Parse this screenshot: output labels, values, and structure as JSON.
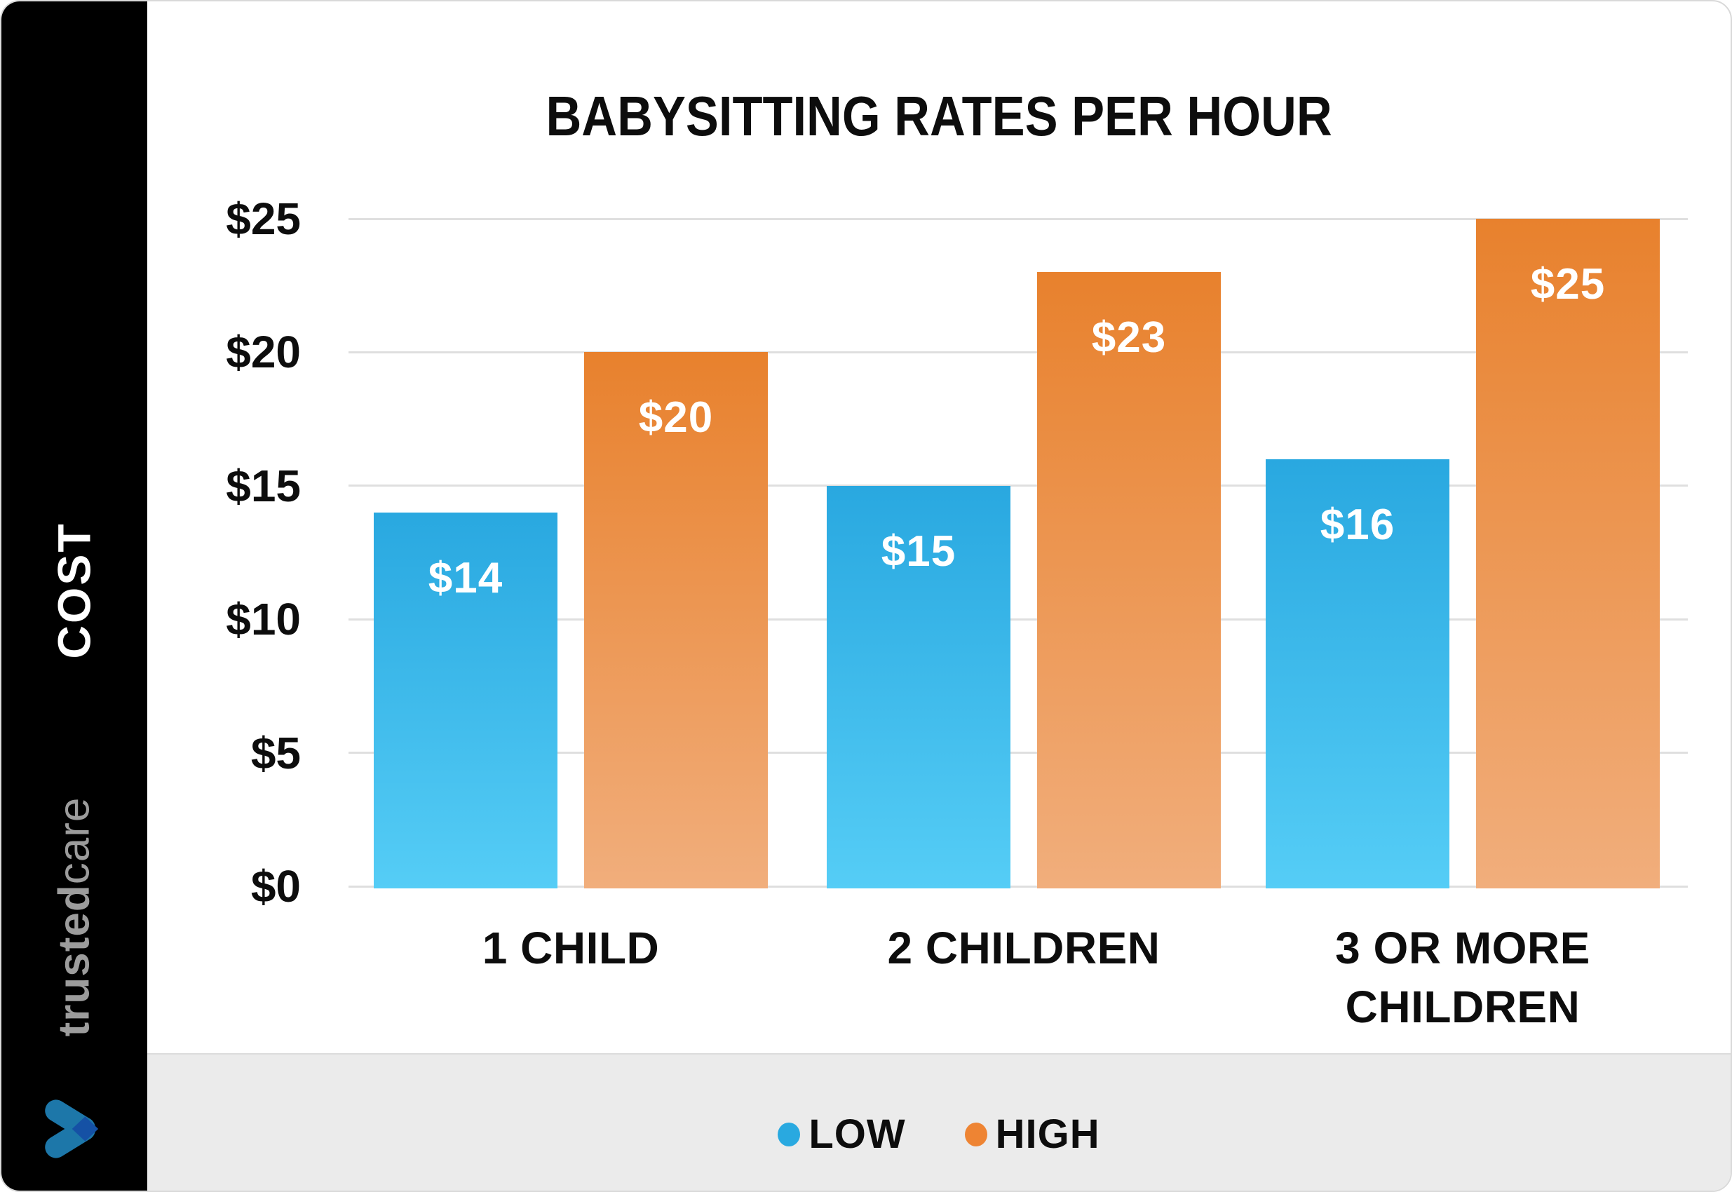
{
  "title": {
    "text": "BABYSITTING RATES PER HOUR"
  },
  "sidebar": {
    "cost_label": "COST",
    "brand_part1": "trusted",
    "brand_part2": "care"
  },
  "chart_data": {
    "type": "bar",
    "title": "BABYSITTING RATES PER HOUR",
    "categories": [
      "1 CHILD",
      "2 CHILDREN",
      "3 OR MORE CHILDREN"
    ],
    "categories_lines": [
      [
        "1 CHILD"
      ],
      [
        "2 CHILDREN"
      ],
      [
        "3 OR MORE",
        "CHILDREN"
      ]
    ],
    "series": [
      {
        "name": "LOW",
        "values": [
          14,
          15,
          16
        ],
        "bar_labels": [
          "$14",
          "$15",
          "$16"
        ]
      },
      {
        "name": "HIGH",
        "values": [
          20,
          23,
          25
        ],
        "bar_labels": [
          "$20",
          "$23",
          "$25"
        ]
      }
    ],
    "y_ticks": [
      {
        "label": "$0",
        "value": 0
      },
      {
        "label": "$5",
        "value": 5
      },
      {
        "label": "$10",
        "value": 10
      },
      {
        "label": "$15",
        "value": 15
      },
      {
        "label": "$20",
        "value": 20
      },
      {
        "label": "$25",
        "value": 25
      }
    ],
    "ylim": [
      0,
      25
    ],
    "ylabel": "COST",
    "grid": "horizontal",
    "legend_position": "bottom"
  },
  "colors": {
    "card_bg": "#ffffff",
    "card_border": "#d9d9d9",
    "sidebar_bg": "#000000",
    "cost_text": "#ffffff",
    "brand_text": "#9c9c9c",
    "logo_light": "#1d77a9",
    "logo_dark": "#1551a5",
    "grid": "#dfdfdf",
    "footer_bg": "#ebebeb",
    "footer_line": "#dcdcdc",
    "value_text": "#ffffff",
    "axis_text": "#0d0d0d",
    "low_top": "#29a8e0",
    "low_bottom": "#55cdf6",
    "high_top": "#e8812d",
    "high_bottom": "#f1ae7c",
    "low_dot": "#29a9e0",
    "high_dot": "#ee8433"
  }
}
